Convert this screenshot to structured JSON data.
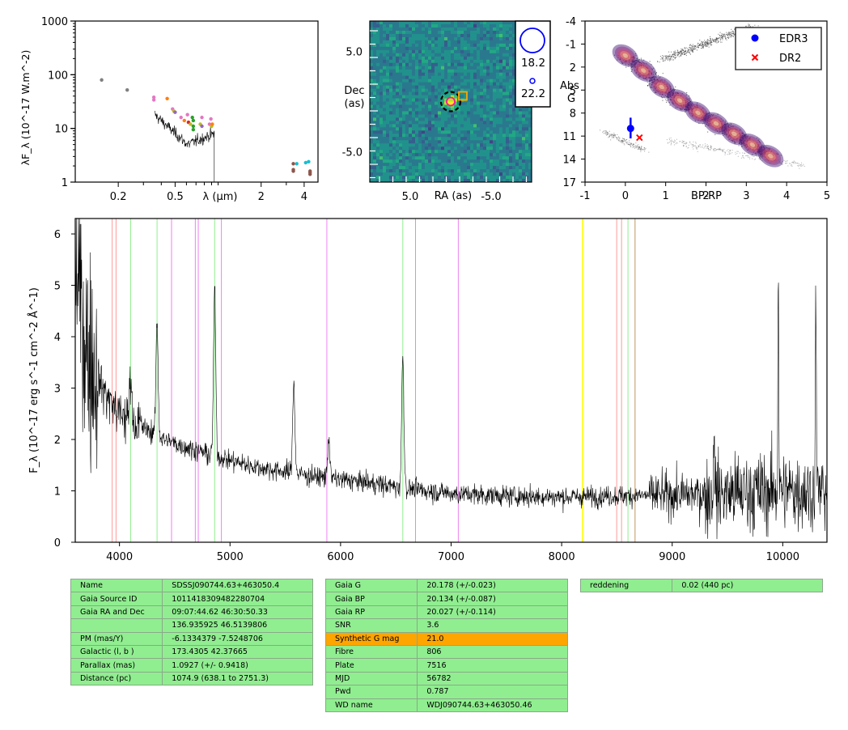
{
  "chart_data": [
    {
      "type": "scatter",
      "id": "sed",
      "xlabel": "λ (μm)",
      "ylabel": "λF_λ (10^-17 W.m^-2)",
      "xscale": "log",
      "yscale": "log",
      "xlim": [
        0.1,
        5.0
      ],
      "ylim": [
        1,
        1000
      ],
      "xticks": [
        {
          "v": 0.2,
          "t": "0.2"
        },
        {
          "v": 0.5,
          "t": "0.5"
        },
        {
          "v": 2,
          "t": "2"
        },
        {
          "v": 4,
          "t": "4"
        }
      ],
      "yticks": [
        {
          "v": 1,
          "t": "1"
        },
        {
          "v": 10,
          "t": "10"
        },
        {
          "v": 100,
          "t": "100"
        },
        {
          "v": 1000,
          "t": "1000"
        }
      ],
      "points": [
        {
          "x": 0.153,
          "y": 80,
          "color": "#7f7f7f"
        },
        {
          "x": 0.231,
          "y": 52,
          "color": "#7f7f7f"
        },
        {
          "x": 0.355,
          "y": 38,
          "color": "#e377c2"
        },
        {
          "x": 0.355,
          "y": 34,
          "color": "#e377c2"
        },
        {
          "x": 0.44,
          "y": 36,
          "color": "#ff7f0e"
        },
        {
          "x": 0.48,
          "y": 23,
          "color": "#e377c2"
        },
        {
          "x": 0.49,
          "y": 21,
          "color": "#bcbd22"
        },
        {
          "x": 0.5,
          "y": 20,
          "color": "#9467bd"
        },
        {
          "x": 0.55,
          "y": 16,
          "color": "#e377c2"
        },
        {
          "x": 0.58,
          "y": 14,
          "color": "#ff7f0e"
        },
        {
          "x": 0.61,
          "y": 18,
          "color": "#e377c2"
        },
        {
          "x": 0.62,
          "y": 13,
          "color": "#d62728"
        },
        {
          "x": 0.64,
          "y": 12,
          "color": "#bcbd22"
        },
        {
          "x": 0.66,
          "y": 16,
          "color": "#2ca02c"
        },
        {
          "x": 0.67,
          "y": 11,
          "color": "#2ca02c"
        },
        {
          "x": 0.67,
          "y": 14,
          "color": "#2ca02c"
        },
        {
          "x": 0.67,
          "y": 9.5,
          "color": "#2ca02c"
        },
        {
          "x": 0.75,
          "y": 12,
          "color": "#bcbd22"
        },
        {
          "x": 0.77,
          "y": 16,
          "color": "#e377c2"
        },
        {
          "x": 0.77,
          "y": 11,
          "color": "#9467bd"
        },
        {
          "x": 0.87,
          "y": 12,
          "color": "#e377c2"
        },
        {
          "x": 0.89,
          "y": 15,
          "color": "#e377c2"
        },
        {
          "x": 0.9,
          "y": 11,
          "color": "#bcbd22"
        },
        {
          "x": 0.91,
          "y": 12,
          "color": "#ff7f0e"
        },
        {
          "x": 3.36,
          "y": 2.2,
          "color": "#8c564b"
        },
        {
          "x": 3.36,
          "y": 1.7,
          "color": "#8c564b"
        },
        {
          "x": 3.36,
          "y": 1.6,
          "color": "#8c564b"
        },
        {
          "x": 3.55,
          "y": 2.2,
          "color": "#17becf"
        },
        {
          "x": 4.1,
          "y": 2.3,
          "color": "#17becf"
        },
        {
          "x": 4.3,
          "y": 2.4,
          "color": "#17becf"
        },
        {
          "x": 4.4,
          "y": 1.6,
          "color": "#8c564b"
        },
        {
          "x": 4.4,
          "y": 1.4,
          "color": "#8c564b"
        },
        {
          "x": 4.4,
          "y": 1.5,
          "color": "#8c564b"
        }
      ],
      "spectrum_segment": {
        "x_start": 0.36,
        "x_end": 0.94,
        "y_start": 18,
        "y_min": 5,
        "y_end": 8
      }
    },
    {
      "type": "heatmap",
      "id": "image",
      "xlabel": "RA (as)",
      "ylabel": "Dec\n(as)",
      "xlim": [
        10,
        -10
      ],
      "ylim": [
        -8,
        8
      ],
      "xticks": [
        {
          "v": 5,
          "t": "5.0"
        },
        {
          "v": -5,
          "t": "-5.0"
        }
      ],
      "yticks": [
        {
          "v": 5,
          "t": "5.0"
        },
        {
          "v": -5,
          "t": "-5.0"
        }
      ],
      "colormap": "viridis",
      "source": {
        "ra": 0.0,
        "dec": 0.0
      },
      "legend": [
        {
          "label": "18.2"
        },
        {
          "label": "22.2"
        }
      ]
    },
    {
      "type": "scatter",
      "id": "hrd",
      "xlabel": "BP-RP",
      "ylabel": "Abs\nG",
      "xlim": [
        -1,
        5
      ],
      "ylim": [
        17,
        -4
      ],
      "xticks": [
        -1,
        0,
        1,
        2,
        3,
        4,
        5
      ],
      "yticks": [
        -4,
        -1,
        2,
        5,
        8,
        11,
        14,
        17
      ],
      "points": [
        {
          "name": "EDR3",
          "x": 0.13,
          "y": 10.0,
          "yerr_lo": 8.6,
          "yerr_hi": 11.3,
          "color": "#0000ff",
          "marker": "o"
        },
        {
          "name": "DR2",
          "x": 0.35,
          "y": 11.2,
          "color": "#ff0000",
          "marker": "x"
        }
      ],
      "legend": [
        "EDR3",
        "DR2"
      ]
    },
    {
      "type": "line",
      "id": "spectrum",
      "xlabel": "",
      "ylabel": "F_λ (10^-17 erg s^-1 cm^-2 Å^-1)",
      "xlim": [
        3600,
        10400
      ],
      "ylim": [
        0,
        6.3
      ],
      "xticks": [
        4000,
        5000,
        6000,
        7000,
        8000,
        9000,
        10000
      ],
      "yticks": [
        0,
        1,
        2,
        3,
        4,
        5,
        6
      ],
      "continuum": [
        [
          3600,
          5.5
        ],
        [
          3700,
          3.8
        ],
        [
          3800,
          3.2
        ],
        [
          3900,
          2.8
        ],
        [
          4000,
          2.5
        ],
        [
          4200,
          2.25
        ],
        [
          4400,
          2.0
        ],
        [
          4600,
          1.85
        ],
        [
          4800,
          1.72
        ],
        [
          5000,
          1.6
        ],
        [
          5200,
          1.48
        ],
        [
          5500,
          1.37
        ],
        [
          5800,
          1.27
        ],
        [
          6200,
          1.17
        ],
        [
          6600,
          1.05
        ],
        [
          7000,
          0.95
        ],
        [
          7500,
          0.9
        ],
        [
          8000,
          0.88
        ],
        [
          8500,
          0.9
        ],
        [
          9000,
          0.92
        ],
        [
          9500,
          0.95
        ],
        [
          10000,
          1.0
        ],
        [
          10400,
          1.0
        ]
      ],
      "emission_lines": [
        {
          "x": 4101,
          "h": 0.9
        },
        {
          "x": 4340,
          "h": 2.2
        },
        {
          "x": 4861,
          "h": 3.2
        },
        {
          "x": 5577,
          "h": 1.8
        },
        {
          "x": 5893,
          "h": 0.8
        },
        {
          "x": 6563,
          "h": 2.6
        },
        {
          "x": 9380,
          "h": 1.6
        },
        {
          "x": 9960,
          "h": 4.5
        },
        {
          "x": 10300,
          "h": 4.0
        }
      ],
      "vlines": [
        {
          "x": 3934,
          "color": "#ff9999"
        },
        {
          "x": 3969,
          "color": "#ff9999"
        },
        {
          "x": 4101,
          "color": "#90ee90"
        },
        {
          "x": 4340,
          "color": "#90ee90"
        },
        {
          "x": 4471,
          "color": "#ee82ee"
        },
        {
          "x": 4686,
          "color": "#ee82ee"
        },
        {
          "x": 4713,
          "color": "#ee82ee"
        },
        {
          "x": 4861,
          "color": "#90ee90"
        },
        {
          "x": 4922,
          "color": "#ee82ee"
        },
        {
          "x": 5876,
          "color": "#ee82ee"
        },
        {
          "x": 6563,
          "color": "#90ee90"
        },
        {
          "x": 6678,
          "color": "#ee82ee"
        },
        {
          "x": 7065,
          "color": "#ee82ee"
        },
        {
          "x": 8190,
          "color": "#ffff00",
          "width": 1.6
        },
        {
          "x": 8498,
          "color": "#ff9999"
        },
        {
          "x": 8542,
          "color": "#ff9999"
        },
        {
          "x": 8600,
          "color": "#90ee90"
        },
        {
          "x": 8662,
          "color": "#d2b48c"
        },
        {
          "x": 8665,
          "color": "#d2b48c"
        }
      ]
    }
  ],
  "tables": {
    "left": [
      [
        "Name",
        "SDSSJ090744.63+463050.4"
      ],
      [
        "Gaia Source ID",
        "1011418309482280704"
      ],
      [
        "Gaia RA and Dec",
        "09:07:44.62    46:30:50.33"
      ],
      [
        "",
        "136.935925    46.5139806"
      ],
      [
        "PM (mas/Y)",
        "-6.1334379    -7.5248706"
      ],
      [
        "Galactic (l, b )",
        "173.4305    42.37665"
      ],
      [
        "Parallax (mas)",
        "1.0927 (+/- 0.9418)"
      ],
      [
        "Distance (pc)",
        "1074.9 (638.1 to 2751.3)"
      ]
    ],
    "middle": [
      [
        "Gaia G",
        "20.178 (+/-0.023)"
      ],
      [
        "Gaia BP",
        "20.134 (+/-0.087)"
      ],
      [
        "Gaia RP",
        "20.027 (+/-0.114)"
      ],
      [
        "SNR",
        "3.6"
      ],
      [
        "Synthetic G mag",
        "21.0"
      ],
      [
        "Fibre",
        "806"
      ],
      [
        "Plate",
        "7516"
      ],
      [
        "MJD",
        "56782"
      ],
      [
        "Pwd",
        "0.787"
      ],
      [
        "WD name",
        "WDJ090744.63+463050.46"
      ]
    ],
    "right": [
      [
        "reddening",
        "0.02 (440 pc)"
      ]
    ],
    "highlight_color": "#ffa500",
    "cell_color": "#90ee90"
  }
}
